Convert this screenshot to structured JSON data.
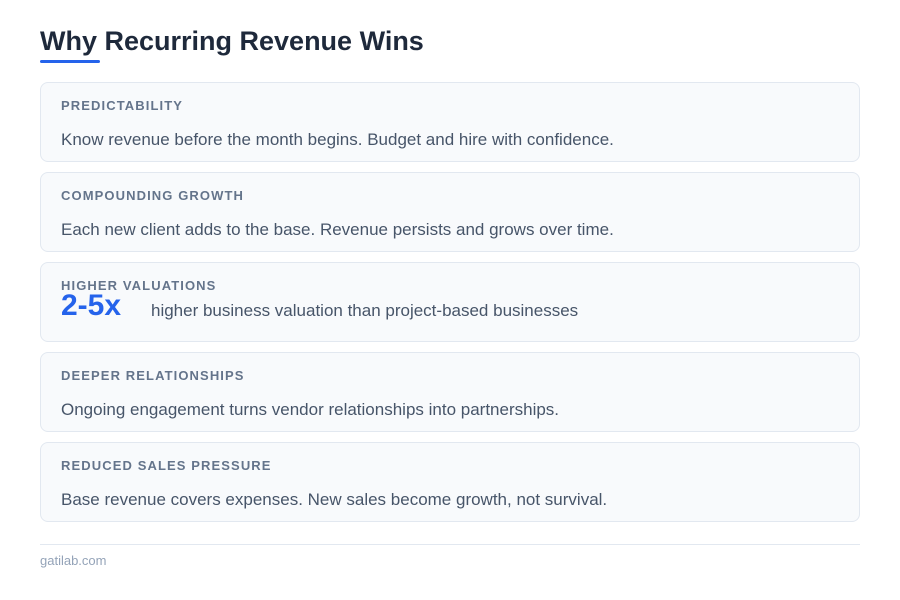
{
  "header": {
    "title": "Why Recurring Revenue Wins"
  },
  "cards": [
    {
      "heading": "PREDICTABILITY",
      "text": "Know revenue before the month begins. Budget and hire with confidence."
    },
    {
      "heading": "COMPOUNDING GROWTH",
      "text": "Each new client adds to the base. Revenue persists and grows over time."
    },
    {
      "heading": "HIGHER VALUATIONS",
      "stat": "2-5x",
      "text": "higher business valuation than project-based businesses"
    },
    {
      "heading": "DEEPER RELATIONSHIPS",
      "text": "Ongoing engagement turns vendor relationships into partnerships."
    },
    {
      "heading": "REDUCED SALES PRESSURE",
      "text": "Base revenue covers expenses. New sales become growth, not survival."
    }
  ],
  "footer": {
    "text": "gatilab.com"
  }
}
